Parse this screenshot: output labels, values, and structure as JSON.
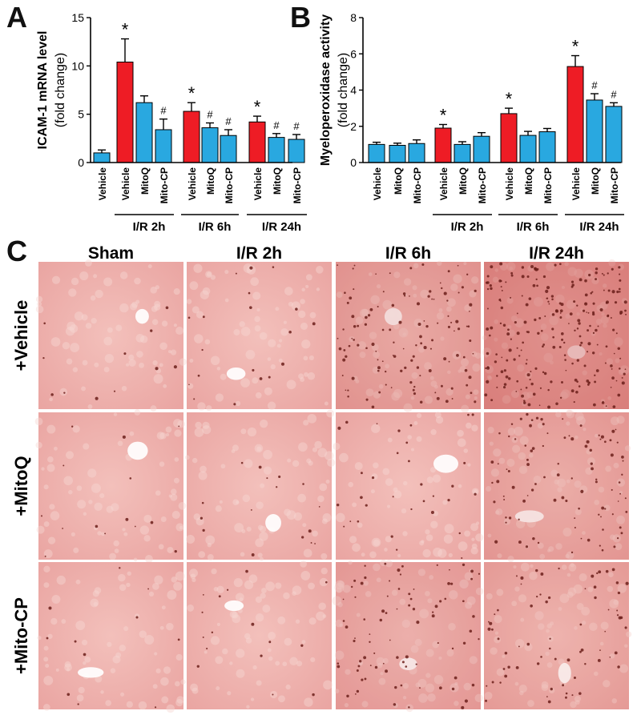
{
  "panels": {
    "a": "A",
    "b": "B",
    "c": "C"
  },
  "colors": {
    "red": "#ee1c25",
    "blue": "#29a8e0",
    "tissue": "#e9a3a0",
    "stain": "#6b1f1a"
  },
  "chart_data": [
    {
      "type": "bar",
      "panel": "A",
      "ylabel": "ICAM-1 mRNA level",
      "ylabel2": "(fold change)",
      "ylim": [
        0,
        15
      ],
      "yticks": [
        0,
        5,
        10,
        15
      ],
      "bars": [
        {
          "label": "Vehicle",
          "group": 0,
          "color": "blue",
          "value": 1.0,
          "err": 0.3,
          "mark": ""
        },
        {
          "label": "Vehicle",
          "group": 1,
          "color": "red",
          "value": 10.4,
          "err": 2.4,
          "mark": "*"
        },
        {
          "label": "MitoQ",
          "group": 1,
          "color": "blue",
          "value": 6.2,
          "err": 0.7,
          "mark": ""
        },
        {
          "label": "Mito-CP",
          "group": 1,
          "color": "blue",
          "value": 3.4,
          "err": 1.1,
          "mark": "#"
        },
        {
          "label": "Vehicle",
          "group": 2,
          "color": "red",
          "value": 5.3,
          "err": 0.9,
          "mark": "*"
        },
        {
          "label": "MitoQ",
          "group": 2,
          "color": "blue",
          "value": 3.6,
          "err": 0.5,
          "mark": "#"
        },
        {
          "label": "Mito-CP",
          "group": 2,
          "color": "blue",
          "value": 2.8,
          "err": 0.6,
          "mark": "#"
        },
        {
          "label": "Vehicle",
          "group": 3,
          "color": "red",
          "value": 4.2,
          "err": 0.6,
          "mark": "*"
        },
        {
          "label": "MitoQ",
          "group": 3,
          "color": "blue",
          "value": 2.6,
          "err": 0.4,
          "mark": "#"
        },
        {
          "label": "Mito-CP",
          "group": 3,
          "color": "blue",
          "value": 2.4,
          "err": 0.5,
          "mark": "#"
        }
      ],
      "groups": [
        "",
        "I/R 2h",
        "I/R 6h",
        "I/R 24h"
      ]
    },
    {
      "type": "bar",
      "panel": "B",
      "ylabel": "Myeloperoxidase activity",
      "ylabel2": "(fold change)",
      "ylim": [
        0,
        8
      ],
      "yticks": [
        0,
        2,
        4,
        6,
        8
      ],
      "bars": [
        {
          "label": "Vehicle",
          "group": 0,
          "color": "blue",
          "value": 1.0,
          "err": 0.12,
          "mark": ""
        },
        {
          "label": "MitoQ",
          "group": 0,
          "color": "blue",
          "value": 0.95,
          "err": 0.12,
          "mark": ""
        },
        {
          "label": "Mito-CP",
          "group": 0,
          "color": "blue",
          "value": 1.05,
          "err": 0.2,
          "mark": ""
        },
        {
          "label": "Vehicle",
          "group": 1,
          "color": "red",
          "value": 1.9,
          "err": 0.2,
          "mark": "*"
        },
        {
          "label": "MitoQ",
          "group": 1,
          "color": "blue",
          "value": 1.0,
          "err": 0.15,
          "mark": ""
        },
        {
          "label": "Mito-CP",
          "group": 1,
          "color": "blue",
          "value": 1.45,
          "err": 0.2,
          "mark": ""
        },
        {
          "label": "Vehicle",
          "group": 2,
          "color": "red",
          "value": 2.7,
          "err": 0.3,
          "mark": "*"
        },
        {
          "label": "MitoQ",
          "group": 2,
          "color": "blue",
          "value": 1.5,
          "err": 0.22,
          "mark": ""
        },
        {
          "label": "Mito-CP",
          "group": 2,
          "color": "blue",
          "value": 1.7,
          "err": 0.18,
          "mark": ""
        },
        {
          "label": "Vehicle",
          "group": 3,
          "color": "red",
          "value": 5.3,
          "err": 0.6,
          "mark": "*"
        },
        {
          "label": "MitoQ",
          "group": 3,
          "color": "blue",
          "value": 3.45,
          "err": 0.35,
          "mark": "#"
        },
        {
          "label": "Mito-CP",
          "group": 3,
          "color": "blue",
          "value": 3.1,
          "err": 0.2,
          "mark": "#"
        }
      ],
      "groups": [
        "",
        "I/R 2h",
        "I/R 6h",
        "I/R 24h"
      ]
    }
  ],
  "micrographs": {
    "columns": [
      "Sham",
      "I/R 2h",
      "I/R 6h",
      "I/R 24h"
    ],
    "rows": [
      "+Vehicle",
      "+MitoQ",
      "+Mito-CP"
    ],
    "stain_density": [
      [
        0.02,
        0.05,
        0.45,
        0.9
      ],
      [
        0.03,
        0.04,
        0.1,
        0.35
      ],
      [
        0.02,
        0.04,
        0.3,
        0.25
      ]
    ]
  }
}
